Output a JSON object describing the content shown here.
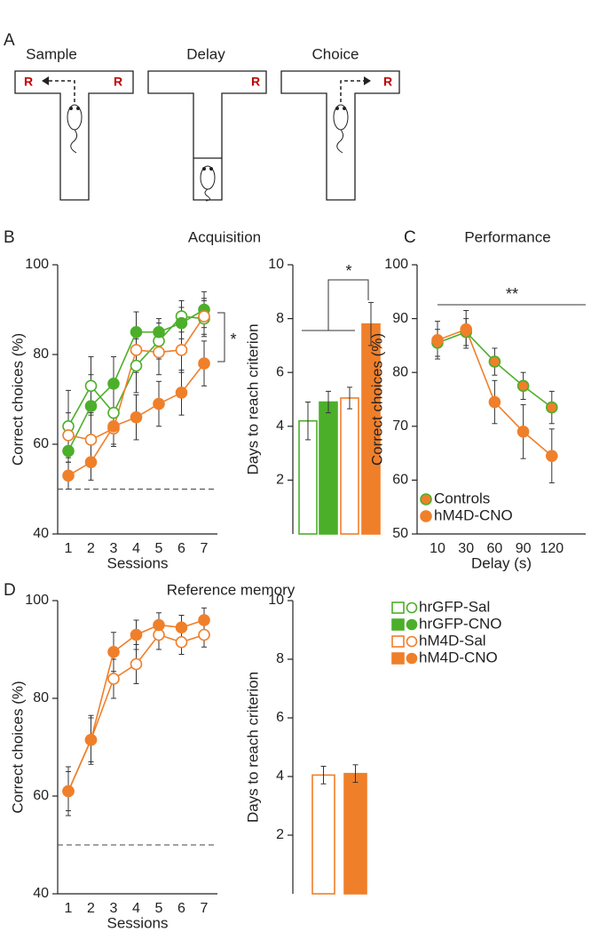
{
  "diagram": {
    "panel": "A",
    "stages": [
      "Sample",
      "Delay",
      "Choice"
    ],
    "reward": "R"
  },
  "chart_data": [
    {
      "type": "line",
      "panel": "B",
      "title": "Acquisition",
      "xlabel": "Sessions",
      "ylabel": "Correct choices (%)",
      "categories": [
        "1",
        "2",
        "3",
        "4",
        "5",
        "6",
        "7"
      ],
      "ylim": [
        40,
        100
      ],
      "yticks": [
        40,
        60,
        80,
        100
      ],
      "reference_line": 50,
      "annotation": "*",
      "series": [
        {
          "name": "hrGFP-Sal",
          "color": "#4caf2a",
          "marker_fill": "#ffffff",
          "values": [
            64,
            73,
            67,
            77.5,
            83,
            88.5,
            88
          ],
          "errors": [
            8,
            6.5,
            7,
            6,
            4,
            3.5,
            4
          ]
        },
        {
          "name": "hrGFP-CNO",
          "color": "#4caf2a",
          "marker_fill": "#4caf2a",
          "values": [
            58.5,
            68.5,
            73.5,
            85,
            85,
            87,
            90
          ],
          "errors": [
            6,
            7,
            6,
            4.5,
            3,
            3.5,
            4
          ]
        },
        {
          "name": "hM4D-Sal",
          "color": "#f07f2a",
          "marker_fill": "#ffffff",
          "values": [
            62,
            61,
            63.5,
            81,
            80.5,
            81,
            88.5
          ],
          "errors": [
            5,
            6,
            4,
            5,
            5,
            5,
            4
          ]
        },
        {
          "name": "hM4D-CNO",
          "color": "#f07f2a",
          "marker_fill": "#f07f2a",
          "values": [
            53,
            56,
            64,
            66,
            69,
            71.5,
            78
          ],
          "errors": [
            3,
            4,
            4,
            5,
            5,
            5,
            5
          ]
        }
      ]
    },
    {
      "type": "bar",
      "ylabel": "Days to reach criterion",
      "ylim": [
        0,
        10
      ],
      "yticks": [
        2,
        4,
        6,
        8,
        10
      ],
      "annotation": "*",
      "values": [
        4.2,
        4.9,
        5.05,
        7.8
      ],
      "errors": [
        0.7,
        0.4,
        0.4,
        0.8
      ],
      "colors": [
        "#4caf2a",
        "#4caf2a",
        "#f07f2a",
        "#f07f2a"
      ],
      "fills": [
        "#ffffff",
        "#4caf2a",
        "#ffffff",
        "#f07f2a"
      ]
    },
    {
      "type": "line",
      "panel": "C",
      "title": "Performance",
      "xlabel": "Delay (s)",
      "ylabel": "Correct choices (%)",
      "categories": [
        "10",
        "30",
        "60",
        "90",
        "120"
      ],
      "ylim": [
        50,
        100
      ],
      "yticks": [
        50,
        60,
        70,
        80,
        90,
        100
      ],
      "annotation": "**",
      "legend": "lower left",
      "series": [
        {
          "name": "Controls",
          "color": "#4caf2a",
          "marker_fill": "#f07f2a",
          "values": [
            85.5,
            87.5,
            82,
            77.5,
            73.5
          ],
          "errors": [
            2.5,
            2.5,
            2.5,
            2.5,
            3
          ]
        },
        {
          "name": "hM4D-CNO",
          "color": "#f07f2a",
          "marker_fill": "#f07f2a",
          "values": [
            86,
            88,
            74.5,
            69,
            64.5
          ],
          "errors": [
            3.5,
            3.5,
            4,
            5,
            5
          ]
        }
      ]
    },
    {
      "type": "line",
      "panel": "D",
      "title": "Reference memory",
      "xlabel": "Sessions",
      "ylabel": "Correct choices (%)",
      "categories": [
        "1",
        "2",
        "3",
        "4",
        "5",
        "6",
        "7"
      ],
      "ylim": [
        40,
        100
      ],
      "yticks": [
        40,
        60,
        80,
        100
      ],
      "reference_line": 50,
      "series": [
        {
          "color": "#f07f2a",
          "marker_fill": "#ffffff",
          "values": [
            61,
            71.5,
            84,
            87,
            93,
            91.5,
            93
          ],
          "errors": [
            4,
            4.5,
            4,
            4,
            3,
            2.5,
            2.5
          ]
        },
        {
          "color": "#f07f2a",
          "marker_fill": "#f07f2a",
          "values": [
            61,
            71.5,
            89.5,
            93,
            95,
            94.5,
            96
          ],
          "errors": [
            5,
            5,
            4,
            3,
            2.5,
            2.5,
            2.5
          ]
        }
      ]
    },
    {
      "type": "bar",
      "ylabel": "Days to reach criterion",
      "ylim": [
        0,
        10
      ],
      "yticks": [
        2,
        4,
        6,
        8,
        10
      ],
      "values": [
        4.05,
        4.1
      ],
      "errors": [
        0.3,
        0.3
      ],
      "colors": [
        "#f07f2a",
        "#f07f2a"
      ],
      "fills": [
        "#ffffff",
        "#f07f2a"
      ]
    }
  ]
}
